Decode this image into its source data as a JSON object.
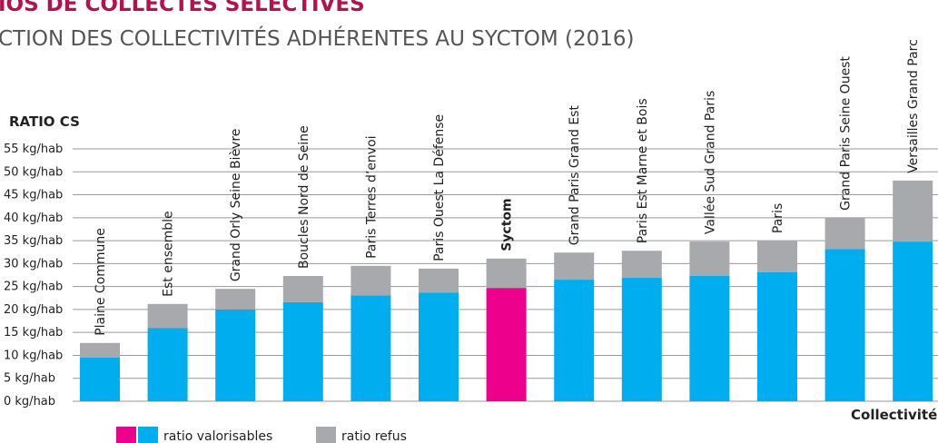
{
  "chart_data": {
    "type": "stacked_bar",
    "title": "IOS DE COLLECTES SÉLECTIVES",
    "subtitle": "CTION DES COLLECTIVITÉS ADHÉRENTES AU SYCTOM (2016)",
    "y_label": "RATIO CS",
    "x_label": "Collectivités",
    "categories": [
      "Plaine Commune",
      "Est ensemble",
      "Grand Orly Seine Bièvre",
      "Boucles Nord de Seine",
      "Paris Terres d’envoi",
      "Paris Ouest La Défense",
      "Syctom",
      "Grand Paris Grand Est",
      "Paris Est Marne et Bois",
      "Vallée Sud Grand Paris",
      "Paris",
      "Grand Paris Seine Ouest",
      "Versailles Grand Parc"
    ],
    "series": [
      {
        "name": "ratio valorisables",
        "color": "#00aeef",
        "colors": [
          "#00aeef",
          "#00aeef",
          "#00aeef",
          "#00aeef",
          "#00aeef",
          "#00aeef",
          "#ec008c",
          "#00aeef",
          "#00aeef",
          "#00aeef",
          "#00aeef",
          "#00aeef",
          "#00aeef"
        ],
        "values": [
          9.5,
          16.0,
          20.0,
          21.6,
          23.1,
          23.7,
          24.7,
          26.5,
          26.9,
          27.3,
          28.1,
          33.2,
          34.8
        ]
      },
      {
        "name": "ratio refus",
        "color": "#a7a9ac",
        "values": [
          3.2,
          5.2,
          4.5,
          5.7,
          6.4,
          5.2,
          6.4,
          5.9,
          5.9,
          7.5,
          6.9,
          6.8,
          13.3
        ]
      }
    ],
    "ylim": [
      0,
      55
    ],
    "yticks": [
      {
        "value": 0,
        "label": "0 kg/hab"
      },
      {
        "value": 5,
        "label": "5 kg/hab"
      },
      {
        "value": 10,
        "label": "10 kg/hab"
      },
      {
        "value": 15,
        "label": "15 kg/hab"
      },
      {
        "value": 20,
        "label": "20 kg/hab"
      },
      {
        "value": 25,
        "label": "25 kg/hab"
      },
      {
        "value": 30,
        "label": "30 kg/hab"
      },
      {
        "value": 35,
        "label": "35 kg/hab"
      },
      {
        "value": 40,
        "label": "40 kg/hab"
      },
      {
        "value": 45,
        "label": "45 kg/hab"
      },
      {
        "value": 50,
        "label": "50 kg/hab"
      },
      {
        "value": 55,
        "label": "55 kg/hab"
      }
    ],
    "grid": true
  }
}
